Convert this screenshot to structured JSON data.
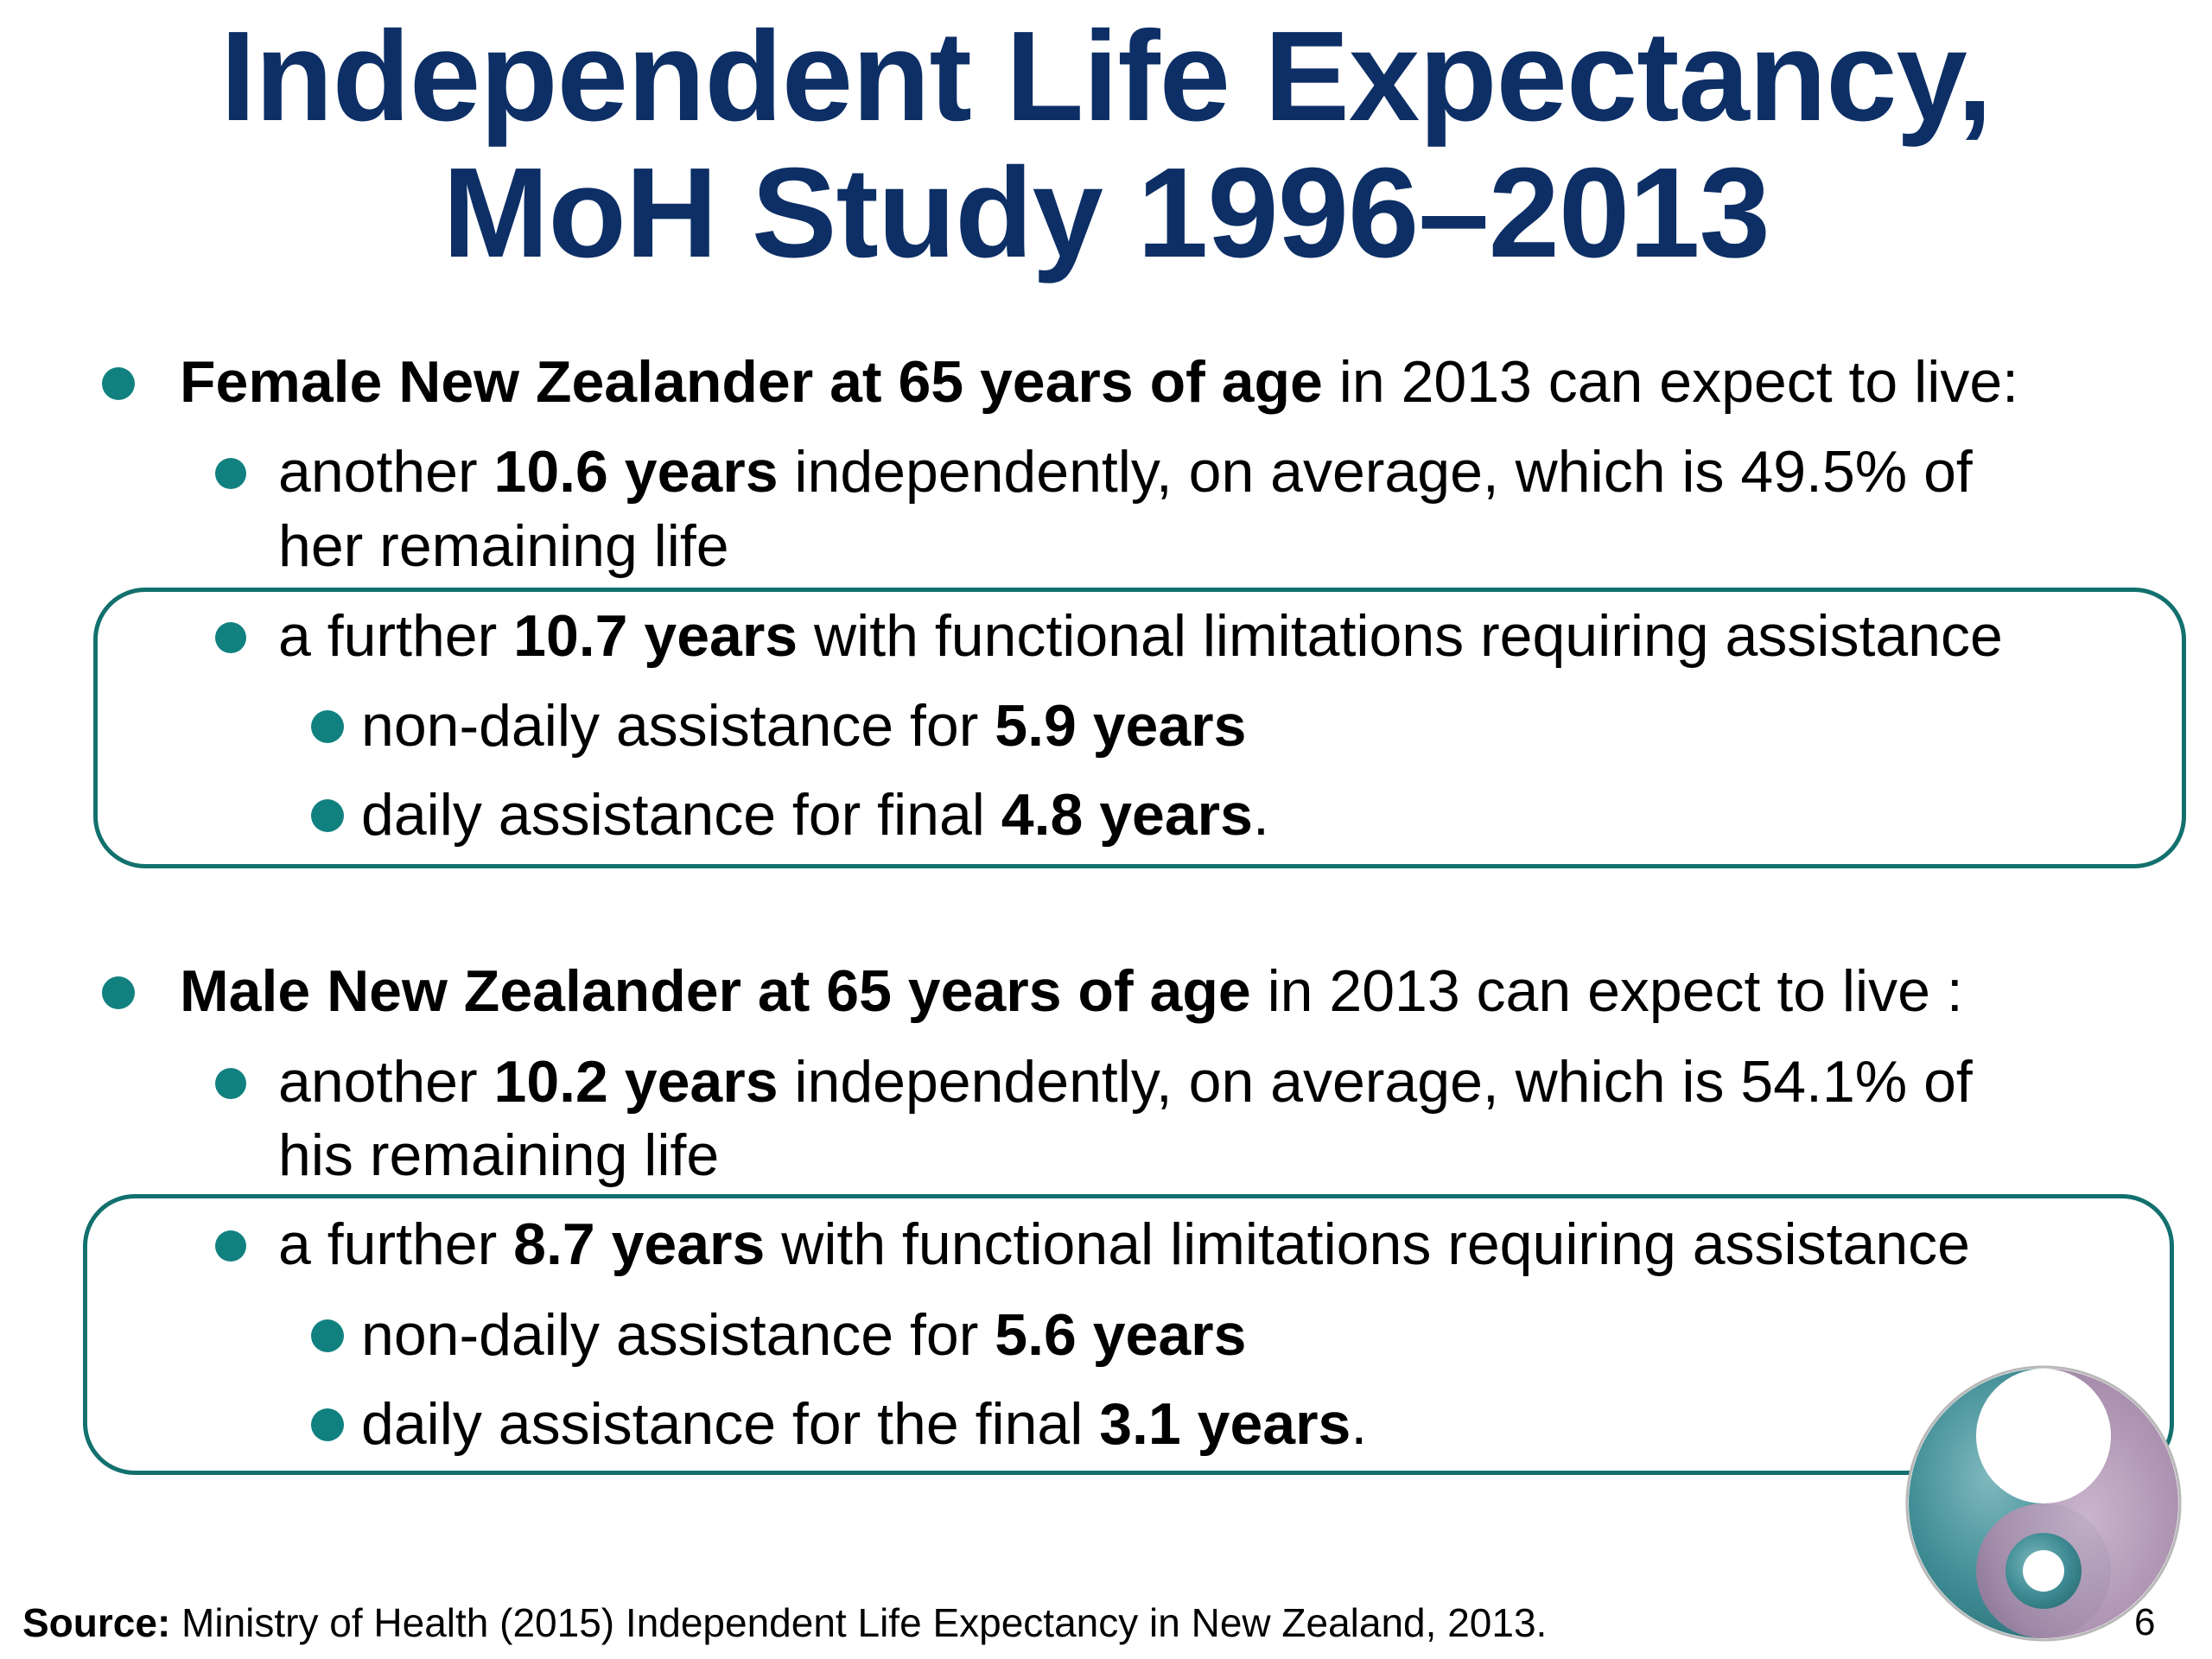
{
  "slide": {
    "title_line1": "Independent Life Expectancy,",
    "title_line2": "MoH Study 1996–2013",
    "female": {
      "lead_bold": "Female New Zealander at 65 years of age",
      "lead_rest": " in 2013 can expect to live:",
      "independent_pre": "another ",
      "independent_bold": "10.6 years",
      "independent_post": " independently, on average, which is 49.5% of",
      "independent_line2": "her remaining life",
      "further_pre": "a further ",
      "further_bold": "10.7 years",
      "further_post": " with functional limitations requiring assistance",
      "nondaily_pre": "non-daily assistance for ",
      "nondaily_bold": "5.9 years",
      "daily_pre": "daily assistance for final ",
      "daily_bold": "4.8 years",
      "daily_post": "."
    },
    "male": {
      "lead_bold": "Male New Zealander at 65 years of age",
      "lead_rest": " in 2013 can expect to live :",
      "independent_pre": "another ",
      "independent_bold": "10.2 years",
      "independent_post": " independently, on average, which is 54.1% of",
      "independent_line2": "his remaining life",
      "further_pre": "a further ",
      "further_bold": "8.7 years",
      "further_post": " with functional limitations requiring assistance",
      "nondaily_pre": "non-daily assistance for ",
      "nondaily_bold": "5.6 years",
      "daily_pre": "daily assistance for the final ",
      "daily_bold": "3.1 years",
      "daily_post": "."
    },
    "source_label": "Source:",
    "source_text": " Ministry of Health (2015) Independent Life Expectancy in New Zealand, 2013.",
    "page_number": "6",
    "colors": {
      "title": "#0d2f66",
      "bullet": "#118180",
      "box_border": "#12706e",
      "logo_teal": "#3f8c94",
      "logo_purple": "#a58aaa"
    },
    "logo_icon": "moh-koru-logo-icon"
  }
}
